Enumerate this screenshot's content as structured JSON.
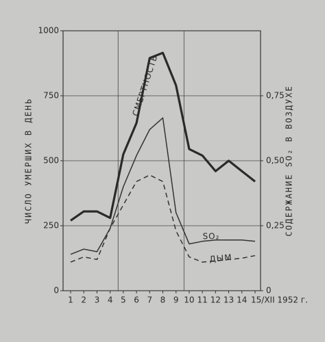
{
  "chart_data": {
    "type": "line",
    "ylabel": "ЧИСЛО УМЕРШИХ В ДЕНЬ",
    "y2label": "СОДЕРЖАНИЕ SO₂ В ВОЗДУХЕ",
    "categories": [
      "1",
      "2",
      "3",
      "4",
      "5",
      "6",
      "7",
      "8",
      "9",
      "10",
      "11",
      "12",
      "13",
      "14",
      "15/XII 1952 г."
    ],
    "ylim": [
      0,
      1000
    ],
    "yticks": [
      0,
      250,
      500,
      750,
      1000
    ],
    "y2lim": [
      0,
      1
    ],
    "y2ticks": [
      0,
      {
        "value": 0.25,
        "label": "0,25"
      },
      {
        "value": 0.5,
        "label": "0,50"
      },
      {
        "value": 0.75,
        "label": "0,75"
      }
    ],
    "grid": true,
    "series": [
      {
        "name": "СМЕРТНОСТЬ",
        "color": "#2a2a2a",
        "width": 3.2,
        "linestyle": "solid",
        "values": [
          270,
          305,
          305,
          280,
          525,
          645,
          895,
          915,
          790,
          545,
          520,
          460,
          500,
          460,
          420
        ]
      },
      {
        "name": "SO₂",
        "color": "#333333",
        "width": 1.5,
        "linestyle": "solid",
        "axis": "y2",
        "values": [
          0.14,
          0.16,
          0.15,
          0.24,
          0.4,
          0.52,
          0.62,
          0.665,
          0.3,
          0.18,
          0.19,
          0.195,
          0.195,
          0.195,
          0.19
        ]
      },
      {
        "name": "ДЫМ",
        "color": "#333333",
        "width": 1.5,
        "linestyle": "dashed",
        "axis": "y2",
        "values": [
          0.11,
          0.13,
          0.12,
          0.24,
          0.33,
          0.42,
          0.445,
          0.42,
          0.23,
          0.13,
          0.11,
          0.115,
          0.12,
          0.125,
          0.135
        ]
      }
    ]
  }
}
